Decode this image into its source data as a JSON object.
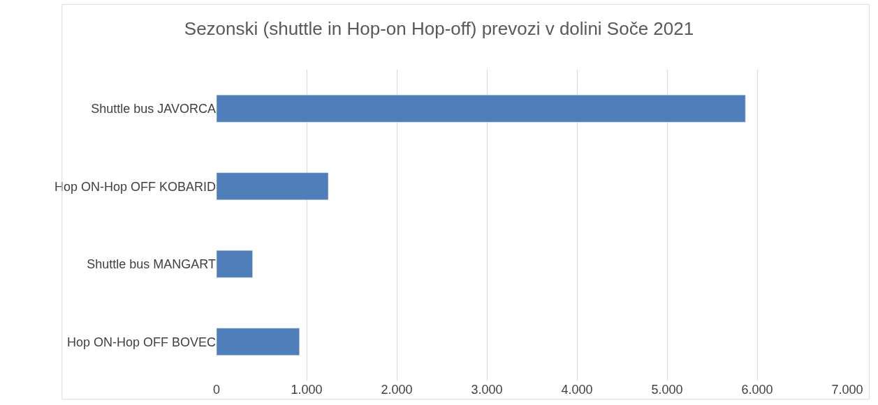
{
  "chart_data": {
    "type": "bar",
    "orientation": "horizontal",
    "title": "Sezonski (shuttle in Hop-on Hop-off) prevozi v dolini Soče 2021",
    "categories": [
      "Shuttle bus JAVORCA",
      "Hop ON-Hop OFF KOBARID",
      "Shuttle bus MANGART",
      "Hop ON-Hop OFF BOVEC"
    ],
    "values": [
      5870,
      1240,
      400,
      920
    ],
    "color": "#4e7fbb",
    "xlim": [
      0,
      7000
    ],
    "xticks": [
      0,
      {
        "value": 1000,
        "label": "1.000"
      },
      {
        "value": 2000,
        "label": "2.000"
      },
      {
        "value": 3000,
        "label": "3.000"
      },
      {
        "value": 4000,
        "label": "4.000"
      },
      {
        "value": 5000,
        "label": "5.000"
      },
      {
        "value": 6000,
        "label": "6.000"
      },
      {
        "value": 7000,
        "label": "7.000"
      }
    ],
    "grid": "x"
  }
}
